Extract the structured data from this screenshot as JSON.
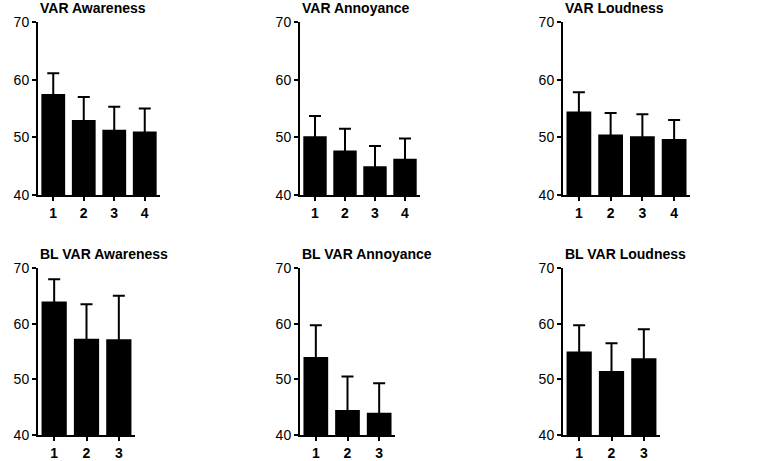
{
  "chart_data": [
    {
      "type": "bar",
      "title": "VAR Awareness",
      "categories": [
        "1",
        "2",
        "3",
        "4"
      ],
      "values": [
        57.5,
        53,
        51.3,
        51
      ],
      "errors": [
        3.6,
        4,
        4,
        4
      ],
      "color": "#000000",
      "ylim": [
        40,
        70
      ],
      "yticks": [
        40,
        50,
        60,
        70
      ],
      "grid": false
    },
    {
      "type": "bar",
      "title": "VAR Annoyance",
      "categories": [
        "1",
        "2",
        "3",
        "4"
      ],
      "values": [
        50.2,
        47.7,
        45,
        46.3
      ],
      "errors": [
        3.5,
        3.8,
        3.5,
        3.5
      ],
      "color": "#000000",
      "ylim": [
        40,
        70
      ],
      "yticks": [
        40,
        50,
        60,
        70
      ],
      "grid": false
    },
    {
      "type": "bar",
      "title": "VAR Loudness",
      "categories": [
        "1",
        "2",
        "3",
        "4"
      ],
      "values": [
        54.5,
        50.5,
        50.2,
        49.7
      ],
      "errors": [
        3.3,
        3.7,
        3.8,
        3.3
      ],
      "color": "#000000",
      "ylim": [
        40,
        70
      ],
      "yticks": [
        40,
        50,
        60,
        70
      ],
      "grid": false
    },
    {
      "type": "bar",
      "title": "BL VAR Awareness",
      "categories": [
        "1",
        "2",
        "3"
      ],
      "values": [
        64,
        57.3,
        57.2
      ],
      "errors": [
        4,
        6.2,
        7.8
      ],
      "color": "#000000",
      "ylim": [
        40,
        70
      ],
      "yticks": [
        40,
        50,
        60,
        70
      ],
      "grid": false
    },
    {
      "type": "bar",
      "title": "BL VAR Annoyance",
      "categories": [
        "1",
        "2",
        "3"
      ],
      "values": [
        54,
        44.5,
        44
      ],
      "errors": [
        5.7,
        6,
        5.3
      ],
      "color": "#000000",
      "ylim": [
        40,
        70
      ],
      "yticks": [
        40,
        50,
        60,
        70
      ],
      "grid": false
    },
    {
      "type": "bar",
      "title": "BL VAR Loudness",
      "categories": [
        "1",
        "2",
        "3"
      ],
      "values": [
        55,
        51.5,
        53.8
      ],
      "errors": [
        4.7,
        5,
        5.2
      ],
      "color": "#000000",
      "ylim": [
        40,
        70
      ],
      "yticks": [
        40,
        50,
        60,
        70
      ],
      "grid": false
    }
  ]
}
